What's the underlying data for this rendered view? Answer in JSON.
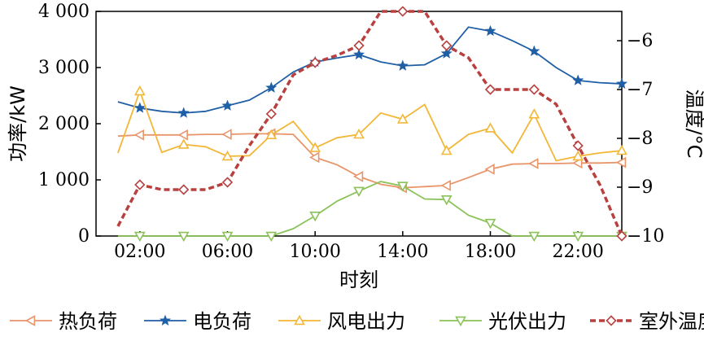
{
  "chart_data": {
    "type": "line",
    "x": [
      1,
      2,
      3,
      4,
      5,
      6,
      7,
      8,
      9,
      10,
      11,
      12,
      13,
      14,
      15,
      16,
      17,
      18,
      19,
      20,
      21,
      22,
      23,
      24
    ],
    "xtick_values": [
      2,
      6,
      10,
      14,
      18,
      22
    ],
    "xtick_labels": [
      "02:00",
      "06:00",
      "10:00",
      "14:00",
      "18:00",
      "22:00"
    ],
    "xlim": [
      0.0,
      24.0
    ],
    "xlabel": "时刻",
    "ylabel_left": "功率/kW",
    "ylim_left": [
      0,
      4000
    ],
    "yticks_left": [
      0,
      1000,
      2000,
      3000,
      4000
    ],
    "ytick_labels_left": [
      "0",
      "1 000",
      "2 000",
      "3 000",
      "4 000"
    ],
    "ylabel_right": "温度/°C",
    "ylim_right": [
      -10,
      -5.4
    ],
    "yticks_right": [
      -10,
      -9,
      -8,
      -7,
      -6
    ],
    "ytick_labels_right": [
      "−10",
      "−9",
      "−8",
      "−7",
      "−6"
    ],
    "legend_position": "bottom",
    "series": [
      {
        "name": "热负荷",
        "axis": "left",
        "color": "#e8956a",
        "marker": "triangle-left",
        "style": "solid",
        "values": [
          1780,
          1800,
          1800,
          1800,
          1810,
          1810,
          1820,
          1820,
          1810,
          1400,
          1270,
          1060,
          920,
          860,
          880,
          900,
          1040,
          1190,
          1280,
          1290,
          1290,
          1300,
          1300,
          1310
        ]
      },
      {
        "name": "电负荷",
        "axis": "left",
        "color": "#1f5fa6",
        "marker": "star",
        "style": "solid",
        "values": [
          2390,
          2280,
          2220,
          2190,
          2220,
          2320,
          2420,
          2640,
          2920,
          3100,
          3170,
          3230,
          3100,
          3030,
          3050,
          3250,
          3720,
          3650,
          3480,
          3290,
          3000,
          2770,
          2730,
          2710
        ]
      },
      {
        "name": "风电出力",
        "axis": "left",
        "color": "#f2b738",
        "marker": "triangle-up",
        "style": "solid",
        "values": [
          1480,
          2580,
          1490,
          1630,
          1590,
          1420,
          1430,
          1800,
          2040,
          1570,
          1750,
          1810,
          2190,
          2080,
          2340,
          1520,
          1810,
          1920,
          1480,
          2170,
          1340,
          1420,
          1480,
          1520
        ]
      },
      {
        "name": "光伏出力",
        "axis": "left",
        "color": "#8cc25a",
        "marker": "triangle-down",
        "style": "solid",
        "values": [
          0,
          0,
          0,
          0,
          0,
          0,
          0,
          0,
          130,
          360,
          620,
          800,
          970,
          890,
          660,
          650,
          370,
          230,
          0,
          0,
          0,
          0,
          0,
          0
        ]
      },
      {
        "name": "室外温度",
        "axis": "right",
        "color": "#b8413f",
        "marker": "diamond",
        "style": "dashed",
        "values": [
          -9.8,
          -8.95,
          -9.05,
          -9.05,
          -9.05,
          -8.9,
          -8.15,
          -7.5,
          -6.7,
          -6.45,
          -6.3,
          -6.1,
          -5.4,
          -5.4,
          -5.4,
          -6.1,
          -6.35,
          -7,
          -7,
          -7,
          -7.3,
          -8.15,
          -8.95,
          -10
        ]
      }
    ]
  }
}
